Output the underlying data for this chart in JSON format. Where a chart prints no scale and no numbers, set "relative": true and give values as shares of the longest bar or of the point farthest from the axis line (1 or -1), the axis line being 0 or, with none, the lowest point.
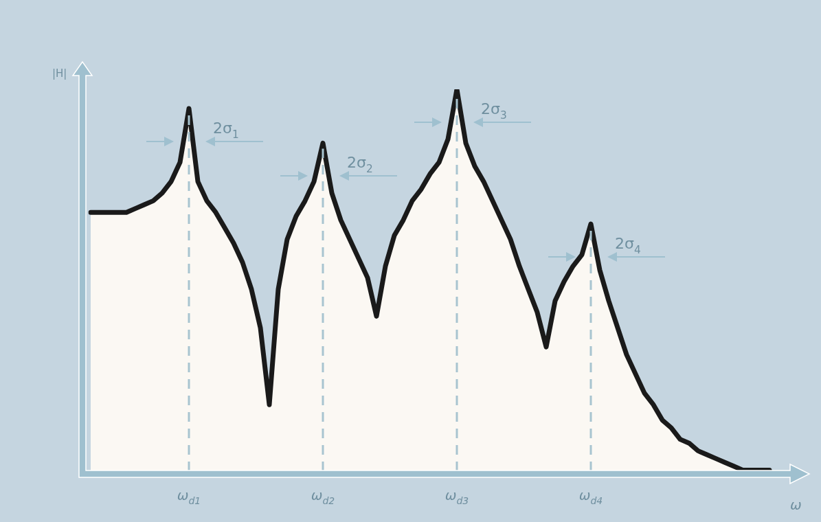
{
  "chart_data": {
    "type": "area",
    "relative": true,
    "xlabel": "ω",
    "ylabel": "|H|",
    "categories": [
      null,
      null,
      null,
      null,
      null,
      null,
      null,
      null,
      null,
      null,
      null,
      "ω$_{d1}$",
      null,
      null,
      null,
      null,
      null,
      null,
      null,
      null,
      null,
      null,
      null,
      null,
      null,
      null,
      "ω$_{d2}$",
      null,
      null,
      null,
      null,
      null,
      null,
      null,
      null,
      null,
      null,
      null,
      null,
      null,
      null,
      "ω$_{d3}$",
      null,
      null,
      null,
      null,
      null,
      null,
      null,
      null,
      null,
      null,
      null,
      null,
      null,
      null,
      "ω$_{d4}$",
      null,
      null,
      null,
      null,
      null,
      null,
      null,
      null,
      null,
      null,
      null,
      null,
      null,
      null,
      null,
      null,
      null,
      null,
      null,
      null,
      null
    ],
    "series": [
      {
        "color": "#1a1a1a",
        "values": [
          0.68,
          0.68,
          0.68,
          0.68,
          0.68,
          0.69,
          0.7,
          0.71,
          0.73,
          0.76,
          0.81,
          0.95,
          0.76,
          0.71,
          0.68,
          0.64,
          0.6,
          0.55,
          0.48,
          0.38,
          0.18,
          0.48,
          0.61,
          0.67,
          0.71,
          0.76,
          0.86,
          0.73,
          0.66,
          0.61,
          0.56,
          0.51,
          0.41,
          0.54,
          0.62,
          0.66,
          0.71,
          0.74,
          0.78,
          0.81,
          0.87,
          1,
          0.86,
          0.8,
          0.76,
          0.71,
          0.66,
          0.61,
          0.54,
          0.48,
          0.42,
          0.33,
          0.45,
          0.5,
          0.54,
          0.57,
          0.65,
          0.53,
          0.45,
          0.38,
          0.31,
          0.26,
          0.21,
          0.18,
          0.14,
          0.12,
          0.09,
          0.08,
          0.06,
          0.05,
          0.04,
          0.03,
          0.02,
          0.01,
          0.01,
          0.01,
          0.01,
          null
        ]
      }
    ],
    "ref_lines": [
      {
        "axis": "x",
        "value": "ω$_{d1}$",
        "color": "#a8c4d0",
        "line_style": "dashed"
      },
      {
        "axis": "x",
        "value": "ω$_{d2}$",
        "color": "#a8c4d0",
        "line_style": "dashed"
      },
      {
        "axis": "x",
        "value": "ω$_{d3}$",
        "color": "#a8c4d0",
        "line_style": "dashed"
      },
      {
        "axis": "x",
        "value": "ω$_{d4}$",
        "color": "#a8c4d0",
        "line_style": "dashed"
      }
    ],
    "annotations": [
      "2σ$_{1}$",
      "2σ$_{2}$",
      "2σ$_{3}$",
      "2σ$_{4}$"
    ],
    "legend": false,
    "marker": "none",
    "line_style": "solid"
  }
}
